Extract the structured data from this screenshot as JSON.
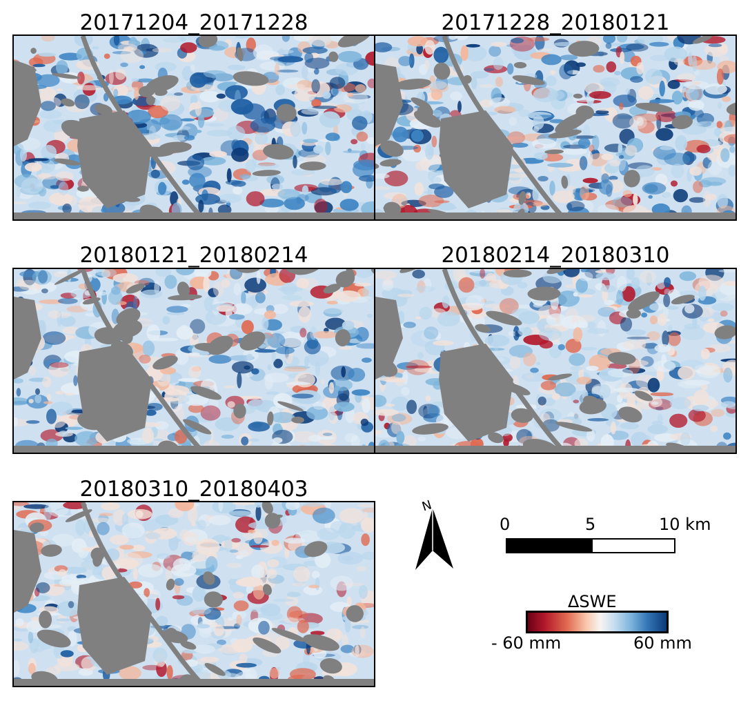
{
  "panels": [
    {
      "title": "20171204_20171228"
    },
    {
      "title": "20171228_20180121"
    },
    {
      "title": "20180121_20180214"
    },
    {
      "title": "20180214_20180310"
    },
    {
      "title": "20180310_20180403"
    }
  ],
  "north_arrow": {
    "label": "N"
  },
  "scale_bar": {
    "ticks": [
      "0",
      "5",
      "10 km"
    ]
  },
  "legend": {
    "title": "ΔSWE",
    "min_label": "- 60 mm",
    "max_label": "60 mm",
    "colors": {
      "min": "#6b0016",
      "mid": "#f7f4f0",
      "max": "#0b3a78",
      "mask": "#808080"
    }
  }
}
